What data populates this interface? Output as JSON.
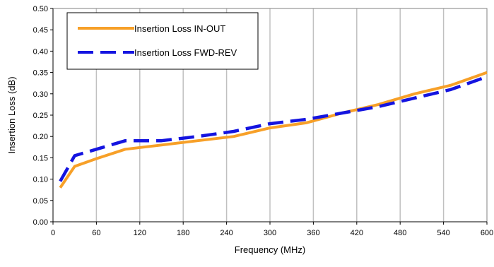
{
  "chart_data": {
    "type": "line",
    "title": "",
    "xlabel": "Frequency (MHz)",
    "ylabel": "Insertion Loss (dB)",
    "xlim": [
      0,
      600
    ],
    "ylim": [
      0,
      0.5
    ],
    "x_ticks": [
      "0",
      "60",
      "120",
      "180",
      "240",
      "300",
      "360",
      "420",
      "480",
      "540",
      "600"
    ],
    "y_ticks": [
      "0.00",
      "0.05",
      "0.10",
      "0.15",
      "0.20",
      "0.25",
      "0.30",
      "0.35",
      "0.40",
      "0.45",
      "0.50"
    ],
    "grid": {
      "vertical": true,
      "horizontal": false
    },
    "legend_position": "top-left",
    "series": [
      {
        "name": "Insertion Loss IN-OUT",
        "color": "#F7A028",
        "style": "solid",
        "x": [
          10,
          30,
          60,
          100,
          150,
          200,
          250,
          300,
          350,
          400,
          450,
          500,
          550,
          600
        ],
        "y": [
          0.08,
          0.13,
          0.148,
          0.17,
          0.18,
          0.19,
          0.2,
          0.22,
          0.232,
          0.255,
          0.275,
          0.3,
          0.32,
          0.35
        ]
      },
      {
        "name": "Insertion Loss FWD-REV",
        "color": "#1414E0",
        "style": "dashed",
        "x": [
          10,
          30,
          60,
          100,
          150,
          200,
          250,
          300,
          350,
          400,
          450,
          500,
          550,
          600
        ],
        "y": [
          0.095,
          0.155,
          0.17,
          0.19,
          0.19,
          0.2,
          0.212,
          0.23,
          0.24,
          0.255,
          0.27,
          0.29,
          0.31,
          0.34
        ]
      }
    ]
  }
}
